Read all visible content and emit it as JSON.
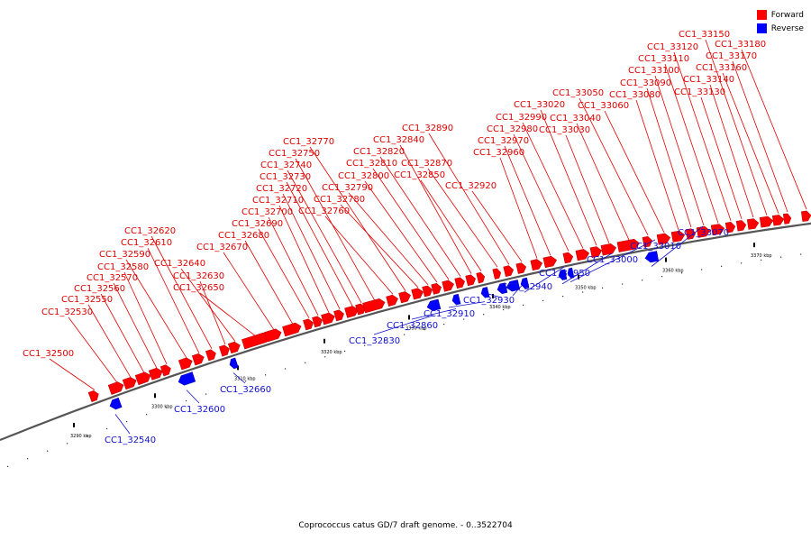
{
  "title": "Coprococcus catus GD/7 draft genome. - 0..3522704",
  "legend": [
    {
      "label": "Forward",
      "color": "#ff0000"
    },
    {
      "label": "Reverse",
      "color": "#0000ff"
    }
  ],
  "colors": {
    "forward": "#ff0000",
    "reverse": "#0000ff",
    "forward_label": "#e00000",
    "reverse_label": "#1010d0",
    "backbone": "#555555"
  },
  "ticks": [
    "3290 kbp",
    "3300 kbp",
    "3310 kbp",
    "3320 kbp",
    "3330 kbp",
    "3340 kbp",
    "3350 kbp",
    "3360 kbp",
    "3370 kbp"
  ],
  "forward_genes": [
    "CC1_32500",
    "CC1_32530",
    "CC1_32550",
    "CC1_32560",
    "CC1_32570",
    "CC1_32580",
    "CC1_32590",
    "CC1_32610",
    "CC1_32620",
    "CC1_32630",
    "CC1_32640",
    "CC1_32650",
    "CC1_32670",
    "CC1_32680",
    "CC1_32690",
    "CC1_32700",
    "CC1_32710",
    "CC1_32720",
    "CC1_32730",
    "CC1_32740",
    "CC1_32750",
    "CC1_32760",
    "CC1_32770",
    "CC1_32780",
    "CC1_32790",
    "CC1_32800",
    "CC1_32810",
    "CC1_32820",
    "CC1_32840",
    "CC1_32850",
    "CC1_32870",
    "CC1_32890",
    "CC1_32920",
    "CC1_32960",
    "CC1_32970",
    "CC1_32980",
    "CC1_32990",
    "CC1_33020",
    "CC1_33030",
    "CC1_33040",
    "CC1_33050",
    "CC1_33060",
    "CC1_33080",
    "CC1_33090",
    "CC1_33100",
    "CC1_33110",
    "CC1_33120",
    "CC1_33130",
    "CC1_33140",
    "CC1_33150",
    "CC1_33160",
    "CC1_33170",
    "CC1_33180"
  ],
  "reverse_genes": [
    "CC1_32540",
    "CC1_32600",
    "CC1_32660",
    "CC1_32830",
    "CC1_32860",
    "CC1_32910",
    "CC1_32930",
    "CC1_32940",
    "CC1_32950",
    "CC1_33000",
    "CC1_33010",
    "CC1_33070"
  ]
}
